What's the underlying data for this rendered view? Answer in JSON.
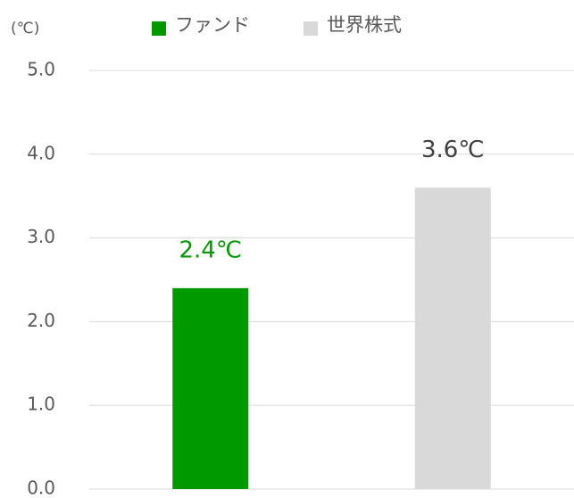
{
  "chart_data": {
    "type": "bar",
    "y_label": "(℃)",
    "categories": [
      null,
      null
    ],
    "series": [
      {
        "name": "ファンド",
        "color": "#009900",
        "label_color": "#009900",
        "values": [
          2.4,
          null
        ],
        "value_labels": [
          "2.4℃",
          null
        ]
      },
      {
        "name": "世界株式",
        "color": "#d9d9d9",
        "label_color": "#404040",
        "values": [
          null,
          3.6
        ],
        "value_labels": [
          null,
          "3.6℃"
        ]
      }
    ],
    "ylim": [
      0,
      5
    ],
    "yticks": [
      {
        "value": 0,
        "label": "0.0"
      },
      {
        "value": 1,
        "label": "1.0"
      },
      {
        "value": 2,
        "label": "2.0"
      },
      {
        "value": 3,
        "label": "3.0"
      },
      {
        "value": 4,
        "label": "4.0"
      },
      {
        "value": 5,
        "label": "5.0"
      }
    ],
    "grid": true,
    "legend": "top"
  }
}
